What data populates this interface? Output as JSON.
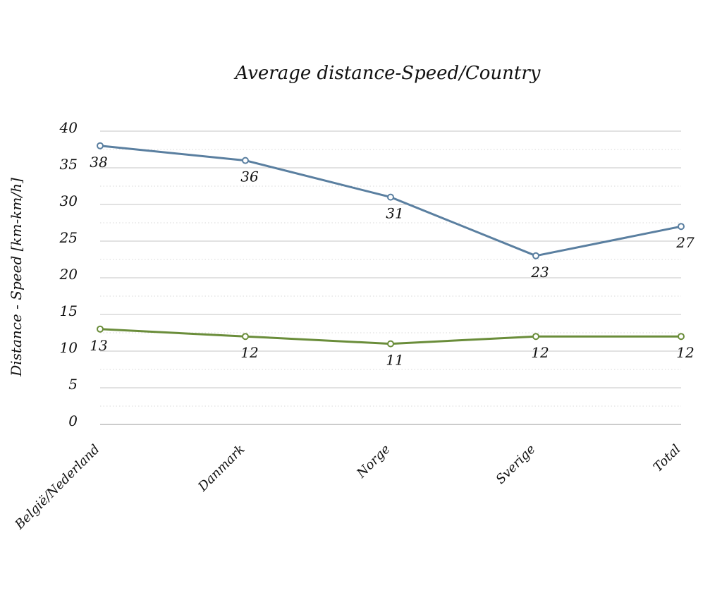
{
  "chart_data": {
    "type": "line",
    "title": "Average distance-Speed/Country",
    "xlabel": "",
    "ylabel": "Distance - Speed [km-km/h]",
    "categories": [
      "België/Nederland",
      "Danmark",
      "Norge",
      "Sverige",
      "Total"
    ],
    "ylim": [
      0,
      40
    ],
    "yticks": [
      0,
      5,
      10,
      15,
      20,
      25,
      30,
      35,
      40
    ],
    "grid": true,
    "legend": "none",
    "series": [
      {
        "values": [
          38,
          36,
          31,
          23,
          27
        ],
        "color": "#5a7fa0",
        "marker": "open-circle"
      },
      {
        "values": [
          13,
          12,
          11,
          12,
          12
        ],
        "color": "#6a8d3a",
        "marker": "open-circle"
      }
    ]
  }
}
